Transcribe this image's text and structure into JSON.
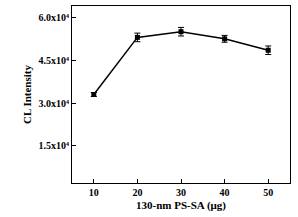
{
  "chart_data": {
    "type": "line",
    "x_label": "130-nm PS-SA (μg)",
    "y_label": "CL Intensity",
    "x": [
      10,
      20,
      30,
      40,
      50
    ],
    "values": [
      33000,
      53000,
      55000,
      52500,
      48500
    ],
    "errors": [
      700,
      1500,
      1500,
      1200,
      1500
    ],
    "color": "#000000",
    "marker": "square",
    "xlim": [
      5,
      55
    ],
    "xticks": [
      10,
      20,
      30,
      40,
      50
    ],
    "ylim": [
      2000,
      64000
    ],
    "yticks": [
      {
        "value": 15000,
        "label": "1.5x10⁴"
      },
      {
        "value": 30000,
        "label": "3.0x10⁴"
      },
      {
        "value": 45000,
        "label": "4.5x10⁴"
      },
      {
        "value": 60000,
        "label": "6.0x10⁴"
      }
    ],
    "grid": false
  }
}
